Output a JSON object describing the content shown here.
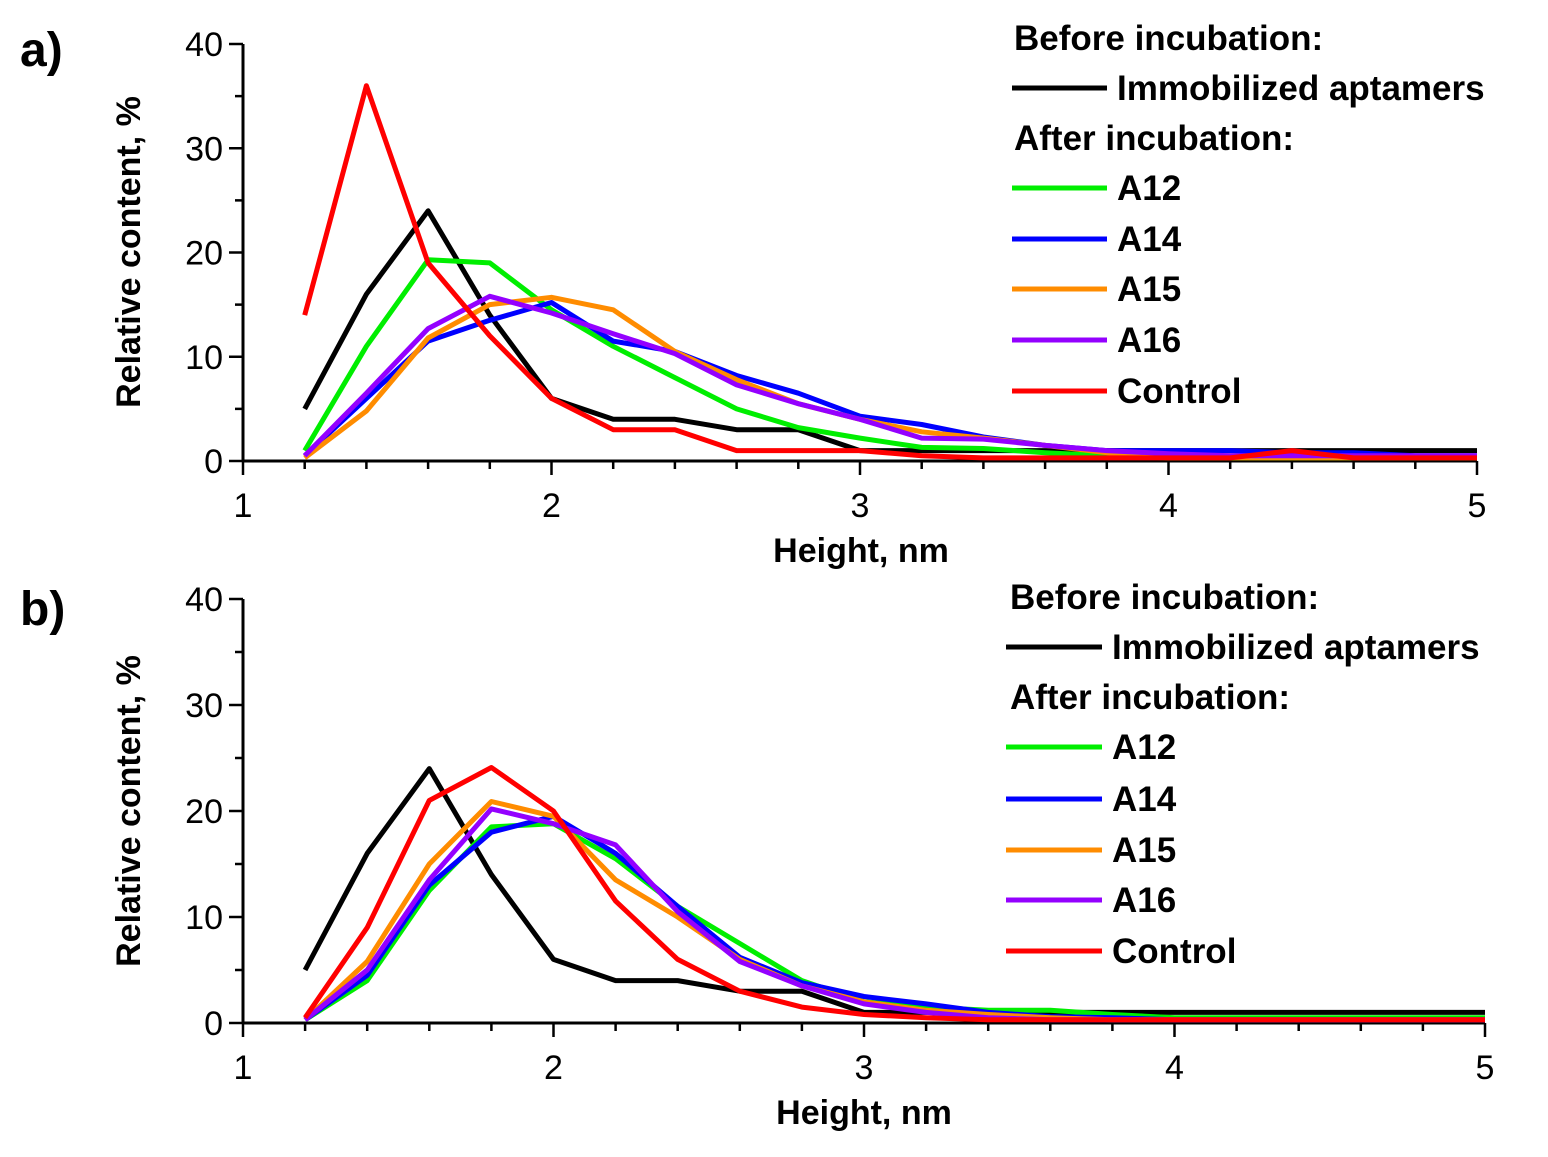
{
  "chart_data": [
    {
      "type": "line",
      "panel_label": "a)",
      "xlabel": "Height, nm",
      "ylabel": "Relative content, %",
      "xlim": [
        1,
        5
      ],
      "ylim": [
        0,
        40
      ],
      "x_ticks": [
        1,
        2,
        3,
        4,
        5
      ],
      "y_ticks": [
        0,
        10,
        20,
        30,
        40
      ],
      "legend": {
        "position": "top-right",
        "headers": {
          "before": "Before incubation:",
          "after": "After incubation:"
        }
      },
      "series": [
        {
          "name": "Immobilized aptamers",
          "group": "before",
          "color": "#000000",
          "x": [
            1.2,
            1.4,
            1.6,
            1.8,
            2.0,
            2.2,
            2.4,
            2.6,
            2.8,
            3.0,
            3.2,
            3.4,
            3.6,
            3.8,
            4.0,
            4.2,
            4.4,
            4.6,
            4.8,
            5.0
          ],
          "y": [
            5,
            16,
            24,
            14,
            6,
            4,
            4,
            3,
            3,
            1,
            1,
            1,
            1,
            1,
            1,
            1,
            1,
            1,
            1,
            1
          ]
        },
        {
          "name": "A12",
          "group": "after",
          "color": "#00ee00",
          "x": [
            1.2,
            1.4,
            1.6,
            1.8,
            2.0,
            2.2,
            2.4,
            2.6,
            2.8,
            3.0,
            3.2,
            3.4,
            3.6,
            3.8,
            4.0,
            4.2,
            4.4,
            4.6,
            4.8,
            5.0
          ],
          "y": [
            1,
            11,
            19.3,
            19,
            14.5,
            11,
            8,
            5,
            3.2,
            2.2,
            1.3,
            1.2,
            0.8,
            0.5,
            0.3,
            0.3,
            0.3,
            0.3,
            0.3,
            0.3
          ]
        },
        {
          "name": "A14",
          "group": "after",
          "color": "#0000ff",
          "x": [
            1.2,
            1.4,
            1.6,
            1.8,
            2.0,
            2.2,
            2.4,
            2.6,
            2.8,
            3.0,
            3.2,
            3.4,
            3.6,
            3.8,
            4.0,
            4.2,
            4.4,
            4.6,
            4.8,
            5.0
          ],
          "y": [
            0.5,
            6,
            11.5,
            13.5,
            15.2,
            11.5,
            10.5,
            8.2,
            6.5,
            4.3,
            3.5,
            2.3,
            1.5,
            1,
            1,
            1,
            0.8,
            0.8,
            0.5,
            0.5
          ]
        },
        {
          "name": "A15",
          "group": "after",
          "color": "#ff8c00",
          "x": [
            1.2,
            1.4,
            1.6,
            1.8,
            2.0,
            2.2,
            2.4,
            2.6,
            2.8,
            3.0,
            3.2,
            3.4,
            3.6,
            3.8,
            4.0,
            4.2,
            4.4,
            4.6,
            4.8,
            5.0
          ],
          "y": [
            0.3,
            4.8,
            11.8,
            15,
            15.7,
            14.5,
            10.5,
            7.8,
            5.5,
            4,
            2.8,
            2.2,
            1.5,
            0.8,
            0.3,
            0.3,
            0.3,
            0.3,
            0.3,
            0.3
          ]
        },
        {
          "name": "A16",
          "group": "after",
          "color": "#9400ff",
          "x": [
            1.2,
            1.4,
            1.6,
            1.8,
            2.0,
            2.2,
            2.4,
            2.6,
            2.8,
            3.0,
            3.2,
            3.4,
            3.6,
            3.8,
            4.0,
            4.2,
            4.4,
            4.6,
            4.8,
            5.0
          ],
          "y": [
            0.5,
            6.5,
            12.7,
            15.8,
            14.2,
            12.2,
            10.3,
            7.3,
            5.5,
            4,
            2.2,
            2.1,
            1.5,
            1,
            0.7,
            0.5,
            0.5,
            0.5,
            0.5,
            0.5
          ]
        },
        {
          "name": "Control",
          "group": "after",
          "color": "#ff0000",
          "x": [
            1.2,
            1.4,
            1.6,
            1.8,
            2.0,
            2.2,
            2.4,
            2.6,
            2.8,
            3.0,
            3.2,
            3.4,
            3.6,
            3.8,
            4.0,
            4.2,
            4.4,
            4.6,
            4.8,
            5.0
          ],
          "y": [
            14,
            36,
            19,
            12,
            6,
            3,
            3,
            1,
            1,
            1,
            0.5,
            0.3,
            0.3,
            0.3,
            0.3,
            0.3,
            1,
            0.3,
            0.3,
            0.3
          ]
        }
      ]
    },
    {
      "type": "line",
      "panel_label": "b)",
      "xlabel": "Height, nm",
      "ylabel": "Relative content, %",
      "xlim": [
        1,
        5
      ],
      "ylim": [
        0,
        40
      ],
      "x_ticks": [
        1,
        2,
        3,
        4,
        5
      ],
      "y_ticks": [
        0,
        10,
        20,
        30,
        40
      ],
      "legend": {
        "position": "top-right",
        "headers": {
          "before": "Before incubation:",
          "after": "After incubation:"
        }
      },
      "series": [
        {
          "name": "Immobilized aptamers",
          "group": "before",
          "color": "#000000",
          "x": [
            1.2,
            1.4,
            1.6,
            1.8,
            2.0,
            2.2,
            2.4,
            2.6,
            2.8,
            3.0,
            3.2,
            3.4,
            3.6,
            3.8,
            4.0,
            4.2,
            4.4,
            4.6,
            4.8,
            5.0
          ],
          "y": [
            5,
            16,
            24,
            14,
            6,
            4,
            4,
            3,
            3,
            1,
            1,
            1,
            1,
            1,
            1,
            1,
            1,
            1,
            1,
            1
          ]
        },
        {
          "name": "A12",
          "group": "after",
          "color": "#00ee00",
          "x": [
            1.2,
            1.4,
            1.6,
            1.8,
            2.0,
            2.2,
            2.4,
            2.6,
            2.8,
            3.0,
            3.2,
            3.4,
            3.6,
            3.8,
            4.0,
            4.2,
            4.4,
            4.6,
            4.8,
            5.0
          ],
          "y": [
            0.3,
            4,
            12.5,
            18.5,
            18.8,
            15.5,
            11,
            7.5,
            4,
            2,
            1.5,
            1.2,
            1.2,
            0.8,
            0.5,
            0.5,
            0.5,
            0.5,
            0.5,
            0.5
          ]
        },
        {
          "name": "A14",
          "group": "after",
          "color": "#0000ff",
          "x": [
            1.2,
            1.4,
            1.6,
            1.8,
            2.0,
            2.2,
            2.4,
            2.6,
            2.8,
            3.0,
            3.2,
            3.4,
            3.6,
            3.8,
            4.0,
            4.2,
            4.4,
            4.6,
            4.8,
            5.0
          ],
          "y": [
            0.3,
            4.5,
            13,
            18,
            19.5,
            16,
            11,
            6.2,
            3.8,
            2.5,
            1.8,
            1,
            0.6,
            0.5,
            0.3,
            0.3,
            0.3,
            0.3,
            0.3,
            0.3
          ]
        },
        {
          "name": "A15",
          "group": "after",
          "color": "#ff8c00",
          "x": [
            1.2,
            1.4,
            1.6,
            1.8,
            2.0,
            2.2,
            2.4,
            2.6,
            2.8,
            3.0,
            3.2,
            3.4,
            3.6,
            3.8,
            4.0,
            4.2,
            4.4,
            4.6,
            4.8,
            5.0
          ],
          "y": [
            0.3,
            5.8,
            15,
            20.9,
            19.5,
            13.5,
            10,
            6,
            3.5,
            2,
            1.2,
            0.8,
            0.5,
            0.3,
            0.3,
            0.3,
            0.3,
            0.3,
            0.3,
            0.3
          ]
        },
        {
          "name": "A16",
          "group": "after",
          "color": "#9400ff",
          "x": [
            1.2,
            1.4,
            1.6,
            1.8,
            2.0,
            2.2,
            2.4,
            2.6,
            2.8,
            3.0,
            3.2,
            3.4,
            3.6,
            3.8,
            4.0,
            4.2,
            4.4,
            4.6,
            4.8,
            5.0
          ],
          "y": [
            0.3,
            5,
            13.5,
            20.2,
            18.8,
            16.8,
            10.5,
            5.8,
            3.5,
            1.8,
            1,
            0.5,
            0.3,
            0.3,
            0.3,
            0.3,
            0.3,
            0.3,
            0.3,
            0.3
          ]
        },
        {
          "name": "Control",
          "group": "after",
          "color": "#ff0000",
          "x": [
            1.2,
            1.4,
            1.6,
            1.8,
            2.0,
            2.2,
            2.4,
            2.6,
            2.8,
            3.0,
            3.2,
            3.4,
            3.6,
            3.8,
            4.0,
            4.2,
            4.4,
            4.6,
            4.8,
            5.0
          ],
          "y": [
            0.5,
            9,
            21,
            24.1,
            20,
            11.5,
            6,
            3,
            1.5,
            0.8,
            0.5,
            0.3,
            0.3,
            0.3,
            0.3,
            0.3,
            0.3,
            0.3,
            0.3,
            0.3
          ]
        }
      ]
    }
  ]
}
